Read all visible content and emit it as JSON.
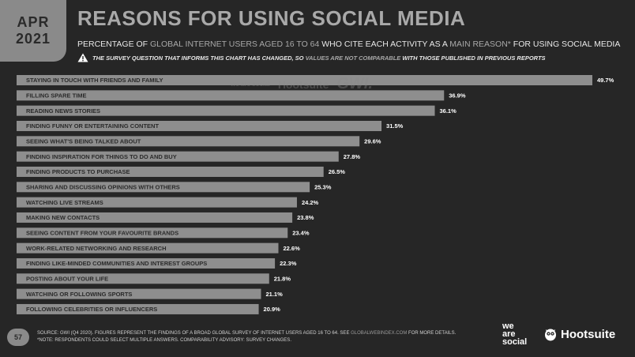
{
  "header": {
    "month": "APR",
    "year": "2021",
    "title": "REASONS FOR USING SOCIAL MEDIA",
    "subtitle_a": "PERCENTAGE OF ",
    "subtitle_b": "GLOBAL INTERNET USERS AGED 16 TO 64",
    "subtitle_c": " WHO CITE EACH ACTIVITY AS A ",
    "subtitle_d": "MAIN REASON*",
    "subtitle_e": " FOR USING SOCIAL MEDIA",
    "notice_a": "THE SURVEY QUESTION THAT INFORMS THIS CHART HAS CHANGED, SO ",
    "notice_b": "VALUES ARE NOT COMPARABLE",
    "notice_c": " WITH THOSE PUBLISHED IN PREVIOUS REPORTS"
  },
  "watermark": {
    "brand1": "we are social",
    "brand2": "Hootsuite",
    "brand3": "GWI."
  },
  "chart_data": {
    "type": "bar",
    "orientation": "horizontal",
    "title": "REASONS FOR USING SOCIAL MEDIA",
    "unit": "%",
    "xlim": [
      0,
      49.7
    ],
    "grid": false,
    "categories": [
      "STAYING IN TOUCH WITH FRIENDS AND FAMILY",
      "FILLING SPARE TIME",
      "READING NEWS STORIES",
      "FINDING FUNNY OR ENTERTAINING CONTENT",
      "SEEING WHAT'S BEING TALKED ABOUT",
      "FINDING INSPIRATION FOR THINGS TO DO AND BUY",
      "FINDING PRODUCTS TO PURCHASE",
      "SHARING AND DISCUSSING OPINIONS WITH OTHERS",
      "WATCHING LIVE STREAMS",
      "MAKING NEW CONTACTS",
      "SEEING CONTENT FROM YOUR FAVOURITE BRANDS",
      "WORK-RELATED NETWORKING AND RESEARCH",
      "FINDING LIKE-MINDED COMMUNITIES AND INTEREST GROUPS",
      "POSTING ABOUT YOUR LIFE",
      "WATCHING OR FOLLOWING SPORTS",
      "FOLLOWING CELEBRITIES OR INFLUENCERS"
    ],
    "values": [
      49.7,
      36.9,
      36.1,
      31.5,
      29.6,
      27.8,
      26.5,
      25.3,
      24.2,
      23.8,
      23.4,
      22.6,
      22.3,
      21.8,
      21.1,
      20.9
    ],
    "value_labels": [
      "49.7%",
      "36.9%",
      "36.1%",
      "31.5%",
      "29.6%",
      "27.8%",
      "26.5%",
      "25.3%",
      "24.2%",
      "23.8%",
      "23.4%",
      "22.6%",
      "22.3%",
      "21.8%",
      "21.1%",
      "20.9%"
    ],
    "bar_color": "#8e8e8e"
  },
  "footer": {
    "page_number": "57",
    "source_a": "SOURCE: GWI (Q4 2020). FIGURES REPRESENT THE FINDINGS OF A BROAD GLOBAL SURVEY OF INTERNET USERS AGED 16 TO 64. SEE ",
    "source_link": "GLOBALWEBINDEX.COM",
    "source_b": " FOR MORE DETAILS.",
    "note_a": "*NOTE: RESPONDENTS COULD SELECT MULTIPLE ANSWERS. ",
    "note_b": "COMPARABILITY ADVISORY: SURVEY CHANGES.",
    "logo_was_1": "we",
    "logo_was_2": "are",
    "logo_was_3": "social",
    "logo_hootsuite": "Hootsuite"
  }
}
